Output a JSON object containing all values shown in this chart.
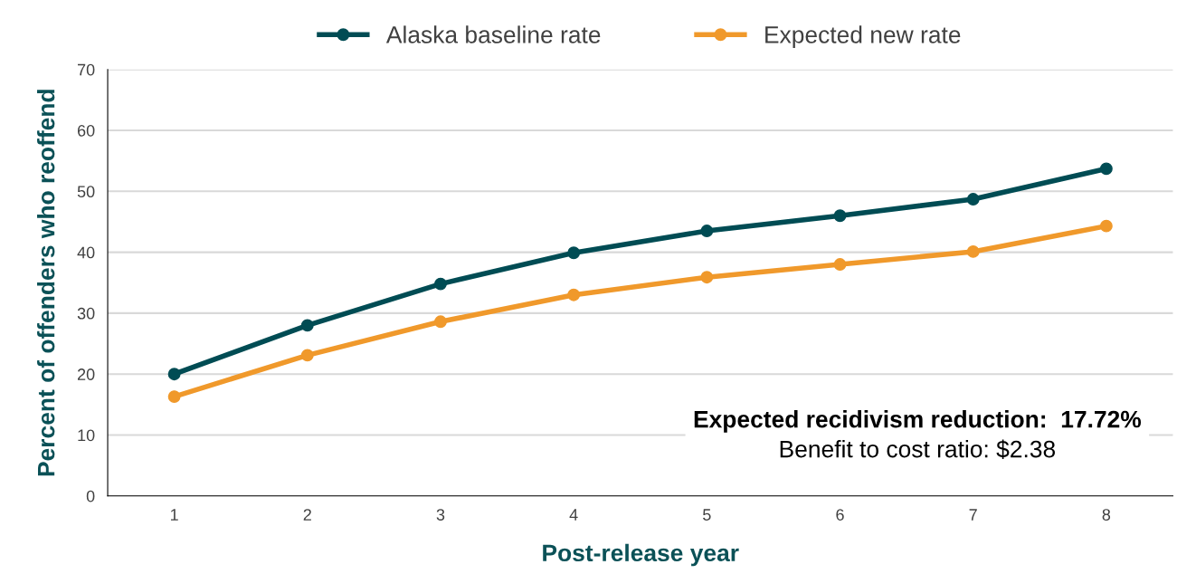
{
  "chart_data": {
    "type": "line",
    "xlabel": "Post-release year",
    "ylabel": "Percent of offenders who reoffend",
    "categories": [
      "1",
      "2",
      "3",
      "4",
      "5",
      "6",
      "7",
      "8"
    ],
    "series": [
      {
        "name": "Alaska baseline rate",
        "color": "#004c54",
        "values": [
          20.0,
          28.0,
          34.8,
          39.9,
          43.5,
          46.0,
          48.7,
          53.7
        ]
      },
      {
        "name": "Expected new rate",
        "color": "#f0992b",
        "values": [
          16.3,
          23.1,
          28.6,
          33.0,
          35.9,
          38.0,
          40.1,
          44.3
        ]
      }
    ],
    "ylim": [
      0,
      70
    ],
    "yticks": [
      0,
      10,
      20,
      30,
      40,
      50,
      60,
      70
    ],
    "grid": "y",
    "legend": "top",
    "marker": "circle",
    "line_style": "solid",
    "annotations": [
      "Expected recidivism reduction:  17.72%",
      "Benefit to cost ratio: $2.38"
    ]
  }
}
